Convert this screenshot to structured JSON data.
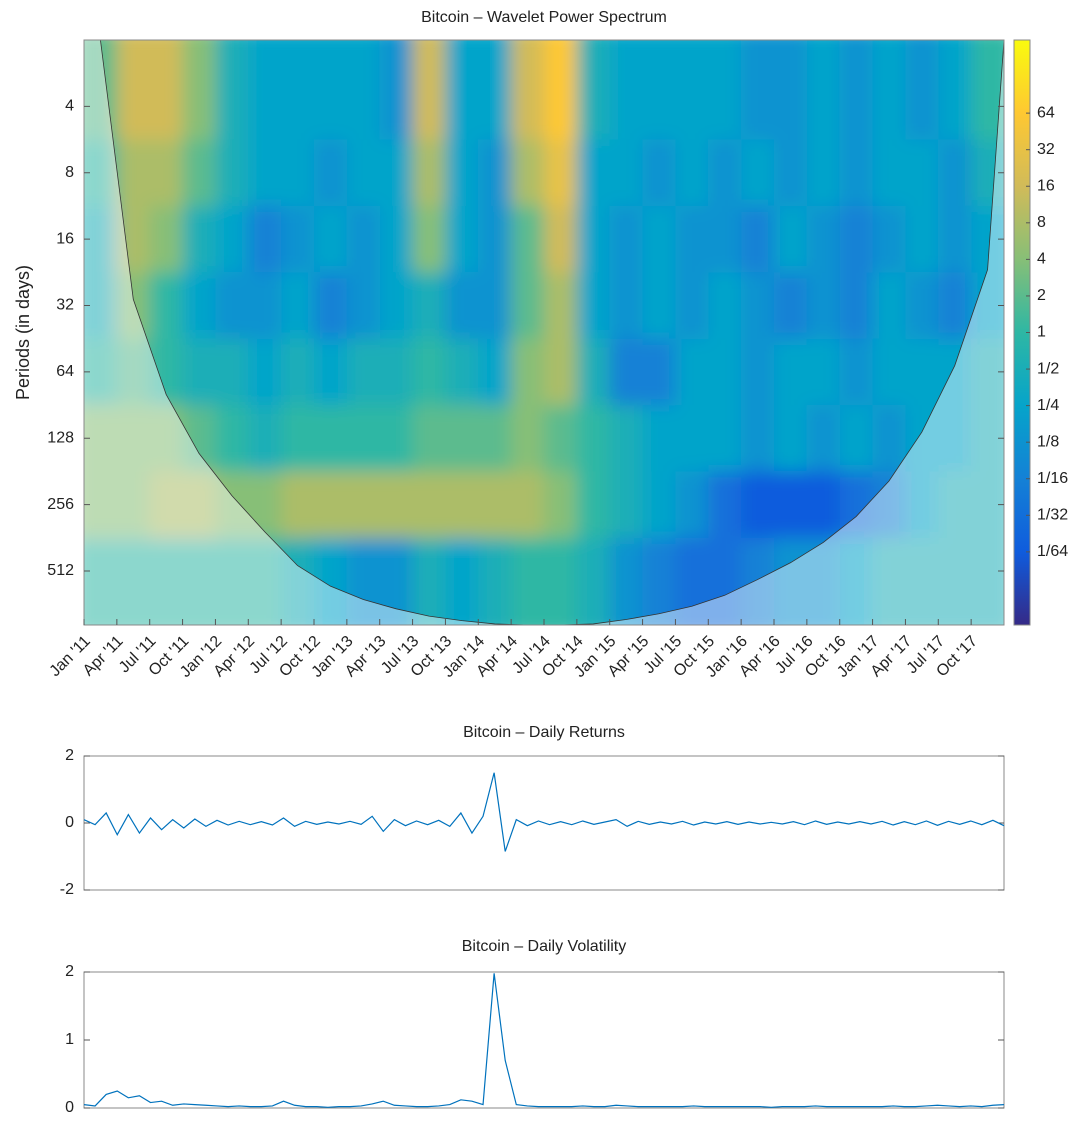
{
  "chart_data": [
    {
      "type": "heatmap",
      "title": "Bitcoin – Wavelet Power Spectrum",
      "ylabel": "Periods (in days)",
      "categories": [
        "Jan '11",
        "Apr '11",
        "Jul '11",
        "Oct '11",
        "Jan '12",
        "Apr '12",
        "Jul '12",
        "Oct '12",
        "Jan '13",
        "Apr '13",
        "Jul '13",
        "Oct '13",
        "Jan '14",
        "Apr '14",
        "Jul '14",
        "Oct '14",
        "Jan '15",
        "Apr '15",
        "Jul '15",
        "Oct '15",
        "Jan '16",
        "Apr '16",
        "Jul '16",
        "Oct '16",
        "Jan '17",
        "Apr '17",
        "Jul '17",
        "Oct '17"
      ],
      "y": [
        4,
        8,
        16,
        32,
        64,
        128,
        256,
        512
      ],
      "ylim": [
        2,
        900
      ],
      "yticks": [
        4,
        8,
        16,
        32,
        64,
        128,
        256,
        512
      ],
      "ylog": true,
      "yreverse": true,
      "z": [
        [
          2,
          16,
          16,
          4,
          0.5,
          0.25,
          0.25,
          0.25,
          0.25,
          0.125,
          16,
          0.25,
          0.25,
          16,
          64,
          0.5,
          0.25,
          0.25,
          0.25,
          0.25,
          0.125,
          0.125,
          0.25,
          0.125,
          0.25,
          0.125,
          0.25,
          1
        ],
        [
          1,
          8,
          8,
          2,
          0.5,
          0.25,
          0.25,
          0.125,
          0.25,
          0.25,
          8,
          0.25,
          0.125,
          8,
          32,
          0.25,
          0.25,
          0.125,
          0.25,
          0.125,
          0.25,
          0.125,
          0.25,
          0.125,
          0.25,
          0.25,
          0.125,
          0.5
        ],
        [
          0.5,
          8,
          4,
          0.5,
          0.25,
          0.0625,
          0.125,
          0.25,
          0.125,
          0.25,
          4,
          0.25,
          0.125,
          2,
          16,
          0.25,
          0.125,
          0.25,
          0.125,
          0.125,
          0.0625,
          0.25,
          0.125,
          0.0625,
          0.125,
          0.25,
          0.125,
          0.25
        ],
        [
          0.5,
          4,
          1,
          0.25,
          0.125,
          0.125,
          0.25,
          0.0625,
          0.125,
          0.25,
          0.5,
          0.125,
          0.125,
          2,
          8,
          0.25,
          0.125,
          0.25,
          0.125,
          0.25,
          0.125,
          0.0625,
          0.125,
          0.0625,
          0.25,
          0.125,
          0.0625,
          0.25
        ],
        [
          1,
          2,
          1,
          0.5,
          0.5,
          0.25,
          0.5,
          0.25,
          0.5,
          0.5,
          1,
          0.5,
          0.25,
          4,
          8,
          0.5,
          0.0625,
          0.0625,
          0.25,
          0.25,
          0.125,
          0.25,
          0.25,
          0.125,
          0.25,
          0.25,
          0.25,
          0.5
        ],
        [
          4,
          4,
          4,
          2,
          1,
          0.5,
          1,
          1,
          1,
          1,
          2,
          2,
          2,
          4,
          2,
          1,
          0.5,
          0.25,
          0.25,
          0.25,
          0.125,
          0.25,
          0.125,
          0.25,
          0.125,
          0.25,
          0.25,
          0.5
        ],
        [
          4,
          4,
          8,
          8,
          4,
          4,
          8,
          8,
          8,
          8,
          8,
          8,
          8,
          8,
          4,
          1,
          0.5,
          0.25,
          0.125,
          0.03125,
          0.015625,
          0.015625,
          0.015625,
          0.03125,
          0.0625,
          0.25,
          0.5,
          0.5
        ],
        [
          1,
          1,
          1,
          1,
          1,
          1,
          0.5,
          0.25,
          0.125,
          0.125,
          0.5,
          0.25,
          0.5,
          1,
          1,
          0.5,
          0.125,
          0.0625,
          0.03125,
          0.03125,
          0.0625,
          0.125,
          0.125,
          0.25,
          0.5,
          0.5,
          0.5,
          0.5
        ]
      ],
      "zlim": [
        0.00390625,
        256
      ],
      "zlog": true,
      "zticks": [
        64,
        32,
        16,
        8,
        4,
        2,
        1,
        {
          "value": 0.5,
          "label": "1/2"
        },
        {
          "value": 0.25,
          "label": "1/4"
        },
        {
          "value": 0.125,
          "label": "1/8"
        },
        {
          "value": 0.0625,
          "label": "1/16"
        },
        {
          "value": 0.03125,
          "label": "1/32"
        },
        {
          "value": 0.015625,
          "label": "1/64"
        }
      ],
      "colormap": [
        "#352a87",
        "#0f5cdd",
        "#1481d6",
        "#06a4ca",
        "#2eb7a4",
        "#87bf77",
        "#d1bb59",
        "#fec832",
        "#f9fb0e"
      ],
      "coi": [
        2,
        30,
        81,
        150,
        233,
        340,
        484,
        600,
        690,
        760,
        820,
        860,
        890,
        900,
        900,
        890,
        850,
        800,
        740,
        660,
        560,
        470,
        380,
        290,
        200,
        120,
        60,
        22
      ]
    },
    {
      "type": "line",
      "title": "Bitcoin – Daily Returns",
      "color": "#0072bd",
      "values": [
        0.1,
        -0.05,
        0.3,
        -0.35,
        0.25,
        -0.3,
        0.15,
        -0.2,
        0.1,
        -0.15,
        0.12,
        -0.1,
        0.08,
        -0.06,
        0.05,
        -0.05,
        0.04,
        -0.06,
        0.15,
        -0.1,
        0.05,
        -0.04,
        0.03,
        -0.03,
        0.05,
        -0.04,
        0.2,
        -0.25,
        0.1,
        -0.08,
        0.06,
        -0.05,
        0.08,
        -0.1,
        0.3,
        -0.3,
        0.2,
        1.5,
        -0.85,
        0.1,
        -0.08,
        0.06,
        -0.05,
        0.04,
        -0.05,
        0.06,
        -0.04,
        0.03,
        0.1,
        -0.1,
        0.05,
        -0.04,
        0.03,
        -0.03,
        0.05,
        -0.06,
        0.03,
        -0.03,
        0.04,
        -0.04,
        0.03,
        -0.03,
        0.02,
        -0.03,
        0.04,
        -0.05,
        0.06,
        -0.04,
        0.03,
        -0.03,
        0.04,
        -0.03,
        0.05,
        -0.06,
        0.04,
        -0.05,
        0.06,
        -0.07,
        0.05,
        -0.04,
        0.06,
        -0.05,
        0.08,
        -0.08
      ],
      "ylim": [
        -2,
        2
      ],
      "yticks": [
        -2,
        0,
        2
      ]
    },
    {
      "type": "line",
      "title": "Bitcoin – Daily Volatility",
      "color": "#0072bd",
      "values": [
        0.05,
        0.03,
        0.2,
        0.25,
        0.15,
        0.18,
        0.08,
        0.1,
        0.04,
        0.06,
        0.05,
        0.04,
        0.03,
        0.02,
        0.03,
        0.02,
        0.02,
        0.03,
        0.1,
        0.04,
        0.02,
        0.02,
        0.01,
        0.02,
        0.02,
        0.03,
        0.06,
        0.1,
        0.04,
        0.03,
        0.02,
        0.02,
        0.03,
        0.05,
        0.12,
        0.1,
        0.05,
        1.98,
        0.7,
        0.05,
        0.03,
        0.02,
        0.02,
        0.02,
        0.02,
        0.03,
        0.02,
        0.02,
        0.04,
        0.03,
        0.02,
        0.02,
        0.02,
        0.02,
        0.02,
        0.03,
        0.02,
        0.02,
        0.02,
        0.02,
        0.02,
        0.02,
        0.01,
        0.02,
        0.02,
        0.02,
        0.03,
        0.02,
        0.02,
        0.02,
        0.02,
        0.02,
        0.02,
        0.03,
        0.02,
        0.02,
        0.03,
        0.04,
        0.03,
        0.02,
        0.03,
        0.02,
        0.04,
        0.05
      ],
      "ylim": [
        0,
        2
      ],
      "yticks": [
        0,
        1,
        2
      ]
    }
  ]
}
